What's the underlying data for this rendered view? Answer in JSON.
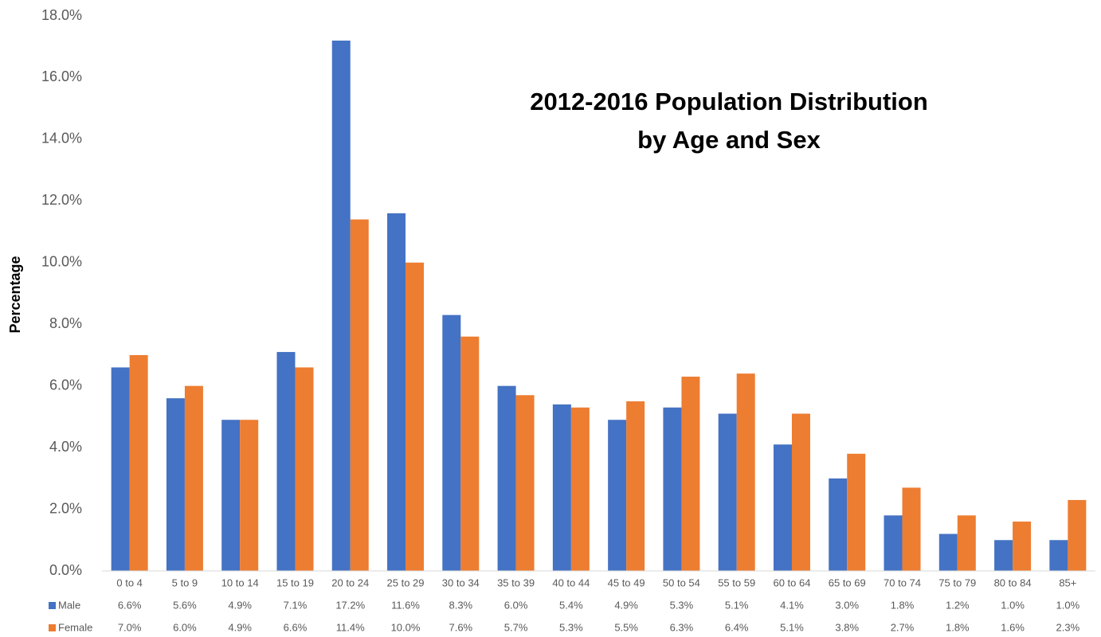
{
  "chart_data": {
    "type": "bar",
    "title": [
      "2012-2016 Population Distribution",
      "by Age and Sex"
    ],
    "y_label": "Percentage",
    "categories": [
      "0 to 4",
      "5 to 9",
      "10 to 14",
      "15 to 19",
      "20 to 24",
      "25 to 29",
      "30 to 34",
      "35 to 39",
      "40 to 44",
      "45 to 49",
      "50 to 54",
      "55 to 59",
      "60 to 64",
      "65 to 69",
      "70 to 74",
      "75 to 79",
      "80 to 84",
      "85+"
    ],
    "series": [
      {
        "name": "Male",
        "color": "#4472c4",
        "values": [
          6.6,
          5.6,
          4.9,
          7.1,
          17.2,
          11.6,
          8.3,
          6.0,
          5.4,
          4.9,
          5.3,
          5.1,
          4.1,
          3.0,
          1.8,
          1.2,
          1.0,
          1.0
        ],
        "value_labels": [
          "6.6%",
          "5.6%",
          "4.9%",
          "7.1%",
          "17.2%",
          "11.6%",
          "8.3%",
          "6.0%",
          "5.4%",
          "4.9%",
          "5.3%",
          "5.1%",
          "4.1%",
          "3.0%",
          "1.8%",
          "1.2%",
          "1.0%",
          "1.0%"
        ]
      },
      {
        "name": "Female",
        "color": "#ed7d31",
        "values": [
          7.0,
          6.0,
          4.9,
          6.6,
          11.4,
          10.0,
          7.6,
          5.7,
          5.3,
          5.5,
          6.3,
          6.4,
          5.1,
          3.8,
          2.7,
          1.8,
          1.6,
          2.3
        ],
        "value_labels": [
          "7.0%",
          "6.0%",
          "4.9%",
          "6.6%",
          "11.4%",
          "10.0%",
          "7.6%",
          "5.7%",
          "5.3%",
          "5.5%",
          "6.3%",
          "6.4%",
          "5.1%",
          "3.8%",
          "2.7%",
          "1.8%",
          "1.6%",
          "2.3%"
        ]
      }
    ],
    "ylim": [
      0,
      18
    ],
    "yticks": [
      {
        "value": 0,
        "label": "0.0%"
      },
      {
        "value": 2,
        "label": "2.0%"
      },
      {
        "value": 4,
        "label": "4.0%"
      },
      {
        "value": 6,
        "label": "6.0%"
      },
      {
        "value": 8,
        "label": "8.0%"
      },
      {
        "value": 10,
        "label": "10.0%"
      },
      {
        "value": 12,
        "label": "12.0%"
      },
      {
        "value": 14,
        "label": "14.0%"
      },
      {
        "value": 16,
        "label": "16.0%"
      },
      {
        "value": 18,
        "label": "18.0%"
      }
    ],
    "grid": false
  }
}
